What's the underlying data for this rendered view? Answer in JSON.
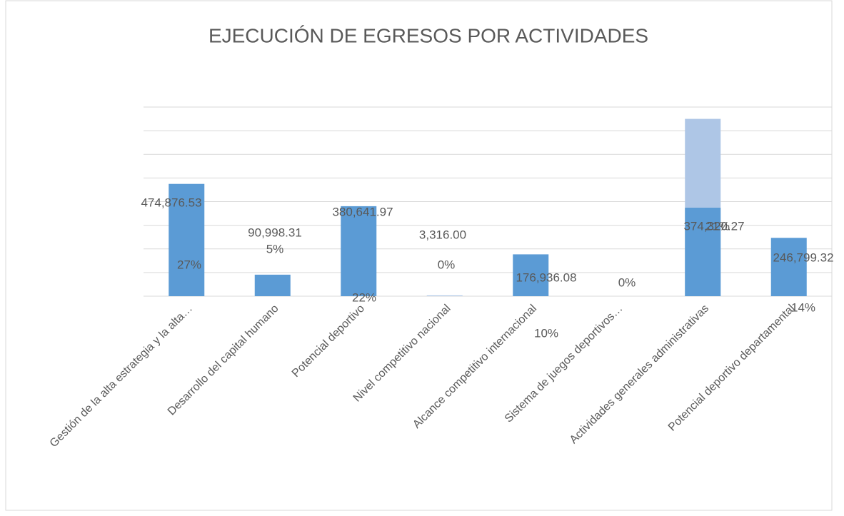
{
  "chart_data": {
    "type": "bar",
    "title": "EJECUCIÓN DE EGRESOS POR ACTIVIDADES",
    "categories": [
      "Gestión de la alta estrategia y la alta…",
      "Desarrollo del capital humano",
      "Potencial deportivo",
      "Nivel competitivo nacional",
      "Alcance competitivo internacional",
      "Sistema de juegos deportivos…",
      "Actividades generales administrativas",
      "Potencial deportivo departamental"
    ],
    "series": [
      {
        "color": "#aec6e6",
        "values": [
          null,
          null,
          null,
          3316,
          null,
          null,
          750000,
          null
        ]
      },
      {
        "color": "#5b9bd5",
        "values": [
          474876.53,
          90998.31,
          380641.97,
          null,
          176936.08,
          0,
          374320.27,
          246799.32
        ],
        "value_labels": [
          "474,876.53",
          "90,998.31",
          "380,641.97",
          "3,316.00",
          "176,936.08",
          null,
          "374,320.27",
          "246,799.32"
        ]
      }
    ],
    "percent_labels": [
      "27%",
      "5%",
      "22%",
      "0%",
      "10%",
      "0%",
      "21%",
      "14%"
    ],
    "ylim": [
      0,
      800000
    ],
    "yticks": [
      0,
      100000,
      200000,
      300000,
      400000,
      500000,
      600000,
      700000,
      800000
    ],
    "grid": true
  }
}
